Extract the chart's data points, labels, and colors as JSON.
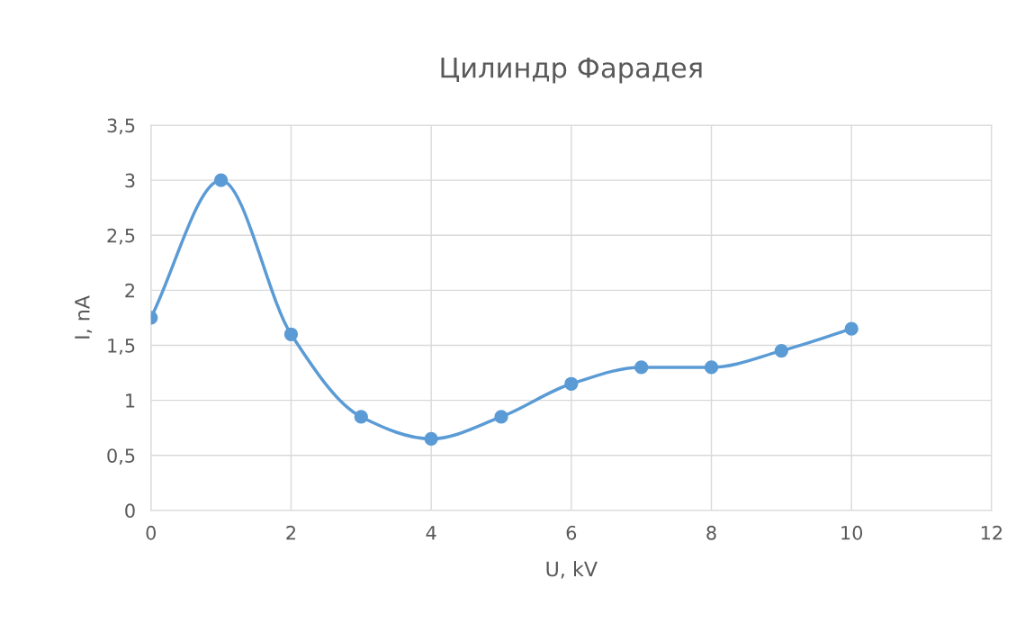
{
  "chart_data": {
    "type": "line",
    "title": "Цилиндр Фарадея",
    "xlabel": "U, kV",
    "ylabel": "I, nA",
    "x": [
      0,
      1,
      2,
      3,
      4,
      5,
      6,
      7,
      8,
      9,
      10
    ],
    "series": [
      {
        "color": "#5b9bd5",
        "values": [
          1.75,
          3.0,
          1.6,
          0.85,
          0.65,
          0.85,
          1.15,
          1.3,
          1.3,
          1.45,
          1.65
        ]
      }
    ],
    "xlim": [
      0,
      12
    ],
    "xticks": [
      0,
      2,
      4,
      6,
      8,
      10,
      12
    ],
    "ylim": [
      0,
      3.5
    ],
    "yticks": [
      0,
      {
        "value": 0.5,
        "label": "0,5"
      },
      1,
      {
        "value": 1.5,
        "label": "1,5"
      },
      2,
      {
        "value": 2.5,
        "label": "2,5"
      },
      3,
      {
        "value": 3.5,
        "label": "3,5"
      }
    ],
    "grid": true,
    "marker": "circle",
    "line_style": "solid"
  }
}
